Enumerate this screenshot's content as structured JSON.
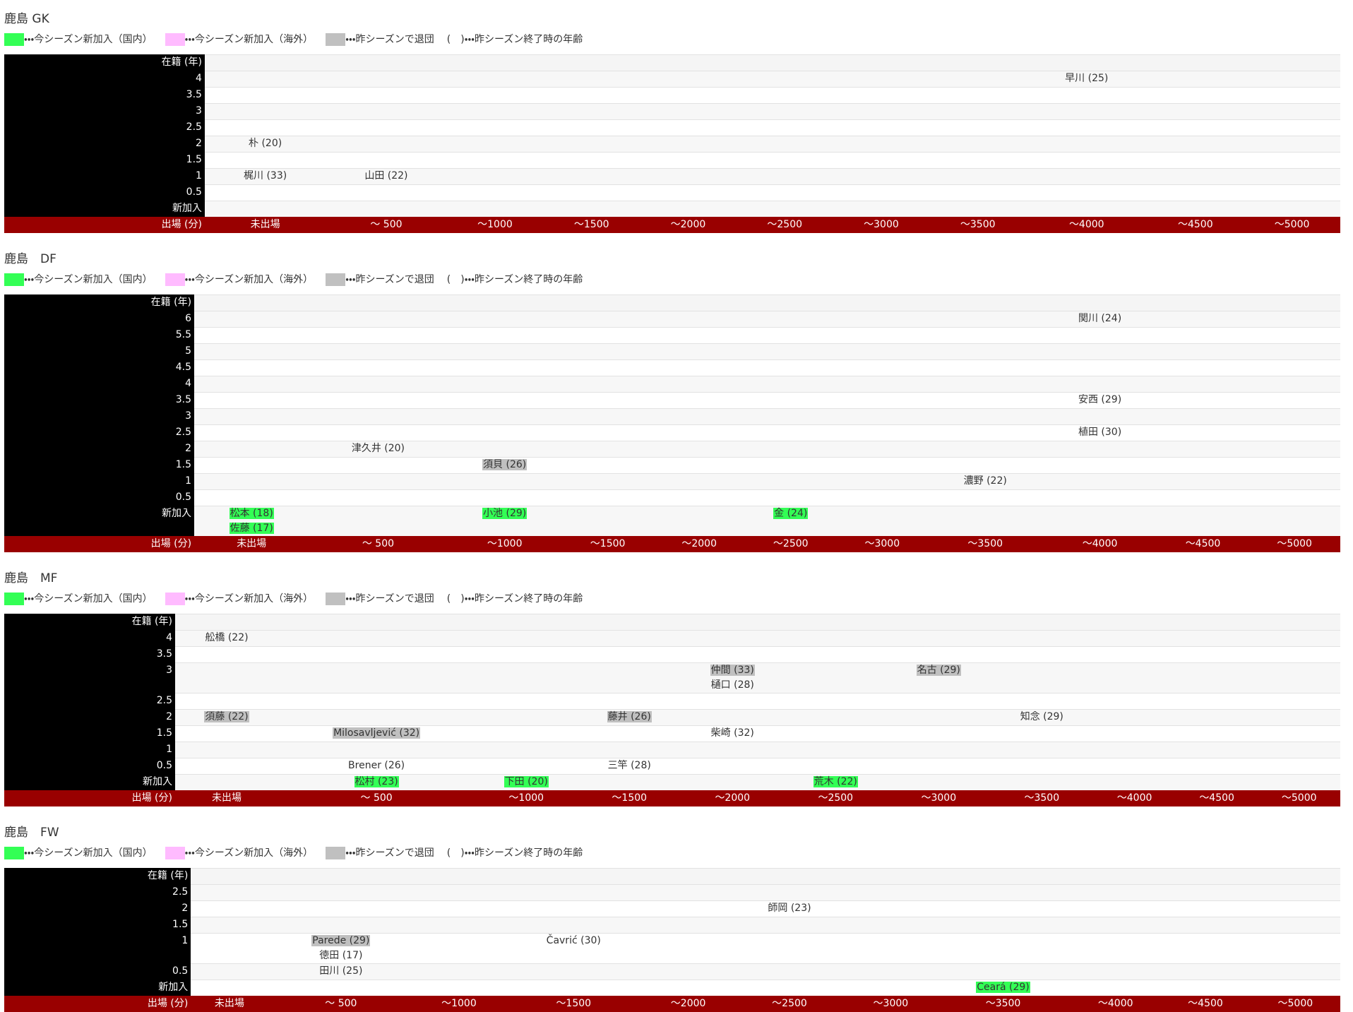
{
  "legend": [
    {
      "color": "#33ff55",
      "text": "・・・今シーズン新加入（国内）"
    },
    {
      "color": "#ffbbff",
      "text": "・・・今シーズン新加入（海外）"
    },
    {
      "color": "#c0c0c0",
      "text": "・・・昨シーズンで退団"
    },
    {
      "text": "(　)・・・昨シーズン終了時の年齢"
    }
  ],
  "sections": [
    {
      "title": "鹿島 GK",
      "row_header": "在籍 (年)",
      "col_header": "出場 (分)",
      "columns": [
        "未出場",
        "〜 500",
        "〜1000",
        "〜1500",
        "〜2000",
        "〜2500",
        "〜3000",
        "〜3500",
        "〜4000",
        "〜4500",
        "〜5000"
      ],
      "rows": [
        {
          "label": "4",
          "cells": [
            [],
            [],
            [],
            [],
            [],
            [],
            [],
            [],
            [
              {
                "name": "早川 (25)"
              }
            ],
            [],
            []
          ]
        },
        {
          "label": "3.5",
          "cells": [
            [],
            [],
            [],
            [],
            [],
            [],
            [],
            [],
            [],
            [],
            []
          ]
        },
        {
          "label": "3",
          "cells": [
            [],
            [],
            [],
            [],
            [],
            [],
            [],
            [],
            [],
            [],
            []
          ]
        },
        {
          "label": "2.5",
          "cells": [
            [],
            [],
            [],
            [],
            [],
            [],
            [],
            [],
            [],
            [],
            []
          ]
        },
        {
          "label": "2",
          "cells": [
            [
              {
                "name": "朴 (20)"
              }
            ],
            [],
            [],
            [],
            [],
            [],
            [],
            [],
            [],
            [],
            []
          ]
        },
        {
          "label": "1.5",
          "cells": [
            [],
            [],
            [],
            [],
            [],
            [],
            [],
            [],
            [],
            [],
            []
          ]
        },
        {
          "label": "1",
          "cells": [
            [
              {
                "name": "梶川 (33)"
              }
            ],
            [
              {
                "name": "山田 (22)"
              }
            ],
            [],
            [],
            [],
            [],
            [],
            [],
            [],
            [],
            []
          ]
        },
        {
          "label": "0.5",
          "cells": [
            [],
            [],
            [],
            [],
            [],
            [],
            [],
            [],
            [],
            [],
            []
          ]
        },
        {
          "label": "新加入",
          "cells": [
            [],
            [],
            [],
            [],
            [],
            [],
            [],
            [],
            [],
            [],
            []
          ]
        }
      ]
    },
    {
      "title": "鹿島　DF",
      "row_header": "在籍 (年)",
      "col_header": "出場 (分)",
      "columns": [
        "未出場",
        "〜 500",
        "〜1000",
        "〜1500",
        "〜2000",
        "〜2500",
        "〜3000",
        "〜3500",
        "〜4000",
        "〜4500",
        "〜5000"
      ],
      "rows": [
        {
          "label": "6",
          "cells": [
            [],
            [],
            [],
            [],
            [],
            [],
            [],
            [],
            [
              {
                "name": "関川 (24)"
              }
            ],
            [],
            []
          ]
        },
        {
          "label": "5.5",
          "cells": [
            [],
            [],
            [],
            [],
            [],
            [],
            [],
            [],
            [],
            [],
            []
          ]
        },
        {
          "label": "5",
          "cells": [
            [],
            [],
            [],
            [],
            [],
            [],
            [],
            [],
            [],
            [],
            []
          ]
        },
        {
          "label": "4.5",
          "cells": [
            [],
            [],
            [],
            [],
            [],
            [],
            [],
            [],
            [],
            [],
            []
          ]
        },
        {
          "label": "4",
          "cells": [
            [],
            [],
            [],
            [],
            [],
            [],
            [],
            [],
            [],
            [],
            []
          ]
        },
        {
          "label": "3.5",
          "cells": [
            [],
            [],
            [],
            [],
            [],
            [],
            [],
            [],
            [
              {
                "name": "安西 (29)"
              }
            ],
            [],
            []
          ]
        },
        {
          "label": "3",
          "cells": [
            [],
            [],
            [],
            [],
            [],
            [],
            [],
            [],
            [],
            [],
            []
          ]
        },
        {
          "label": "2.5",
          "cells": [
            [],
            [],
            [],
            [],
            [],
            [],
            [],
            [],
            [
              {
                "name": "植田 (30)"
              }
            ],
            [],
            []
          ]
        },
        {
          "label": "2",
          "cells": [
            [],
            [
              {
                "name": "津久井 (20)"
              }
            ],
            [],
            [],
            [],
            [],
            [],
            [],
            [],
            [],
            []
          ]
        },
        {
          "label": "1.5",
          "cells": [
            [],
            [],
            [
              {
                "name": "須貝 (26)",
                "color": "#c0c0c0"
              }
            ],
            [],
            [],
            [],
            [],
            [],
            [],
            [],
            []
          ]
        },
        {
          "label": "1",
          "cells": [
            [],
            [],
            [],
            [],
            [],
            [],
            [],
            [
              {
                "name": "濃野 (22)"
              }
            ],
            [],
            [],
            []
          ]
        },
        {
          "label": "0.5",
          "cells": [
            [],
            [],
            [],
            [],
            [],
            [],
            [],
            [],
            [],
            [],
            []
          ]
        },
        {
          "label": "新加入",
          "cells": [
            [
              {
                "name": "松本 (18)",
                "color": "#33ff55"
              },
              {
                "name": "佐藤 (17)",
                "color": "#33ff55"
              }
            ],
            [],
            [
              {
                "name": "小池 (29)",
                "color": "#33ff55"
              }
            ],
            [],
            [],
            [
              {
                "name": "金 (24)",
                "color": "#33ff55"
              }
            ],
            [],
            [],
            [],
            [],
            []
          ]
        }
      ]
    },
    {
      "title": "鹿島　MF",
      "row_header": "在籍 (年)",
      "col_header": "出場 (分)",
      "columns": [
        "未出場",
        "〜 500",
        "〜1000",
        "〜1500",
        "〜2000",
        "〜2500",
        "〜3000",
        "〜3500",
        "〜4000",
        "〜4500",
        "〜5000"
      ],
      "rows": [
        {
          "label": "4",
          "cells": [
            [
              {
                "name": "舩橋 (22)"
              }
            ],
            [],
            [],
            [],
            [],
            [],
            [],
            [],
            [],
            [],
            []
          ]
        },
        {
          "label": "3.5",
          "cells": [
            [],
            [],
            [],
            [],
            [],
            [],
            [],
            [],
            [],
            [],
            []
          ]
        },
        {
          "label": "3",
          "cells": [
            [],
            [],
            [],
            [],
            [
              {
                "name": "仲間 (33)",
                "color": "#c0c0c0"
              },
              {
                "name": "樋口 (28)"
              }
            ],
            [],
            [
              {
                "name": "名古 (29)",
                "color": "#c0c0c0"
              }
            ],
            [],
            [],
            [],
            []
          ]
        },
        {
          "label": "2.5",
          "cells": [
            [],
            [],
            [],
            [],
            [],
            [],
            [],
            [],
            [],
            [],
            []
          ]
        },
        {
          "label": "2",
          "cells": [
            [
              {
                "name": "須藤 (22)",
                "color": "#c0c0c0"
              }
            ],
            [],
            [],
            [
              {
                "name": "藤井 (26)",
                "color": "#c0c0c0"
              }
            ],
            [],
            [],
            [],
            [
              {
                "name": "知念 (29)"
              }
            ],
            [],
            [],
            []
          ]
        },
        {
          "label": "1.5",
          "cells": [
            [],
            [
              {
                "name": "Milosavljević (32)",
                "color": "#c0c0c0"
              }
            ],
            [],
            [],
            [
              {
                "name": "柴崎 (32)"
              }
            ],
            [],
            [],
            [],
            [],
            [],
            []
          ]
        },
        {
          "label": "1",
          "cells": [
            [],
            [],
            [],
            [],
            [],
            [],
            [],
            [],
            [],
            [],
            []
          ]
        },
        {
          "label": "0.5",
          "cells": [
            [],
            [
              {
                "name": "Brener (26)"
              }
            ],
            [],
            [
              {
                "name": "三竿 (28)"
              }
            ],
            [],
            [],
            [],
            [],
            [],
            [],
            []
          ]
        },
        {
          "label": "新加入",
          "cells": [
            [],
            [
              {
                "name": "松村 (23)",
                "color": "#33ff55"
              }
            ],
            [
              {
                "name": "下田 (20)",
                "color": "#33ff55"
              }
            ],
            [],
            [],
            [
              {
                "name": "荒木 (22)",
                "color": "#33ff55"
              }
            ],
            [],
            [],
            [],
            [],
            []
          ]
        }
      ]
    },
    {
      "title": "鹿島　FW",
      "row_header": "在籍 (年)",
      "col_header": "出場 (分)",
      "columns": [
        "未出場",
        "〜 500",
        "〜1000",
        "〜1500",
        "〜2000",
        "〜2500",
        "〜3000",
        "〜3500",
        "〜4000",
        "〜4500",
        "〜5000"
      ],
      "rows": [
        {
          "label": "2.5",
          "cells": [
            [],
            [],
            [],
            [],
            [],
            [],
            [],
            [],
            [],
            [],
            []
          ]
        },
        {
          "label": "2",
          "cells": [
            [],
            [],
            [],
            [],
            [],
            [
              {
                "name": "師岡 (23)"
              }
            ],
            [],
            [],
            [],
            [],
            []
          ]
        },
        {
          "label": "1.5",
          "cells": [
            [],
            [],
            [],
            [],
            [],
            [],
            [],
            [],
            [],
            [],
            []
          ]
        },
        {
          "label": "1",
          "cells": [
            [],
            [
              {
                "name": "Parede (29)",
                "color": "#c0c0c0"
              },
              {
                "name": "徳田 (17)"
              }
            ],
            [],
            [
              {
                "name": "Čavrić (30)"
              }
            ],
            [],
            [],
            [],
            [],
            [],
            [],
            []
          ]
        },
        {
          "label": "0.5",
          "cells": [
            [],
            [
              {
                "name": "田川 (25)"
              }
            ],
            [],
            [],
            [],
            [],
            [],
            [],
            [],
            [],
            []
          ]
        },
        {
          "label": "新加入",
          "cells": [
            [],
            [],
            [],
            [],
            [],
            [],
            [],
            [
              {
                "name": "Ceará (29)",
                "color": "#33ff55"
              }
            ],
            [],
            [],
            []
          ]
        }
      ]
    }
  ]
}
